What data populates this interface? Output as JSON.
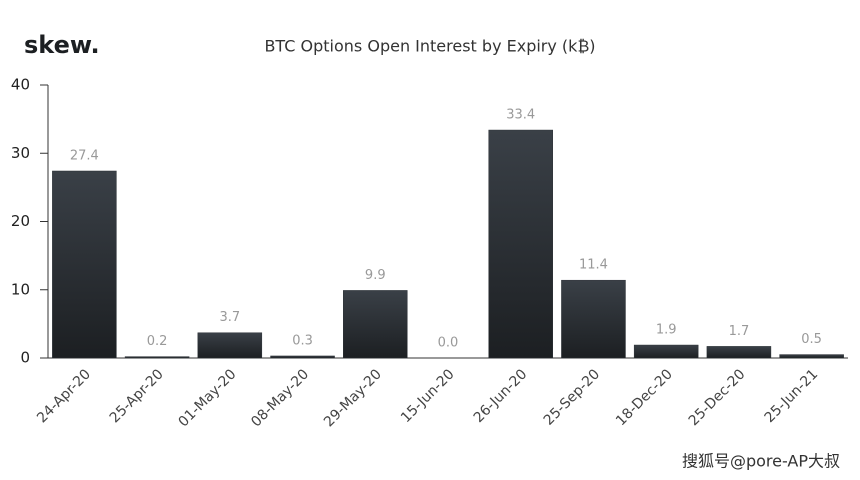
{
  "logo": "skew.",
  "watermark": "搜狐号@pore-AP大叔",
  "chart_data": {
    "type": "bar",
    "title": "BTC Options Open Interest by Expiry (k₿)",
    "categories": [
      "24-Apr-20",
      "25-Apr-20",
      "01-May-20",
      "08-May-20",
      "29-May-20",
      "15-Jun-20",
      "26-Jun-20",
      "25-Sep-20",
      "18-Dec-20",
      "25-Dec-20",
      "25-Jun-21"
    ],
    "values": [
      27.4,
      0.2,
      3.7,
      0.3,
      9.9,
      0,
      33.4,
      11.4,
      1.9,
      1.7,
      0.5
    ],
    "value_labels": [
      "27.4",
      "0.2",
      "3.7",
      "0.3",
      "9.9",
      "0.0",
      "33.4",
      "11.4",
      "1.9",
      "1.7",
      "0.5"
    ],
    "color": "#2b3035",
    "ylim": [
      0,
      40
    ],
    "yticks": [
      0,
      10,
      20,
      30,
      40
    ],
    "grid": false
  }
}
